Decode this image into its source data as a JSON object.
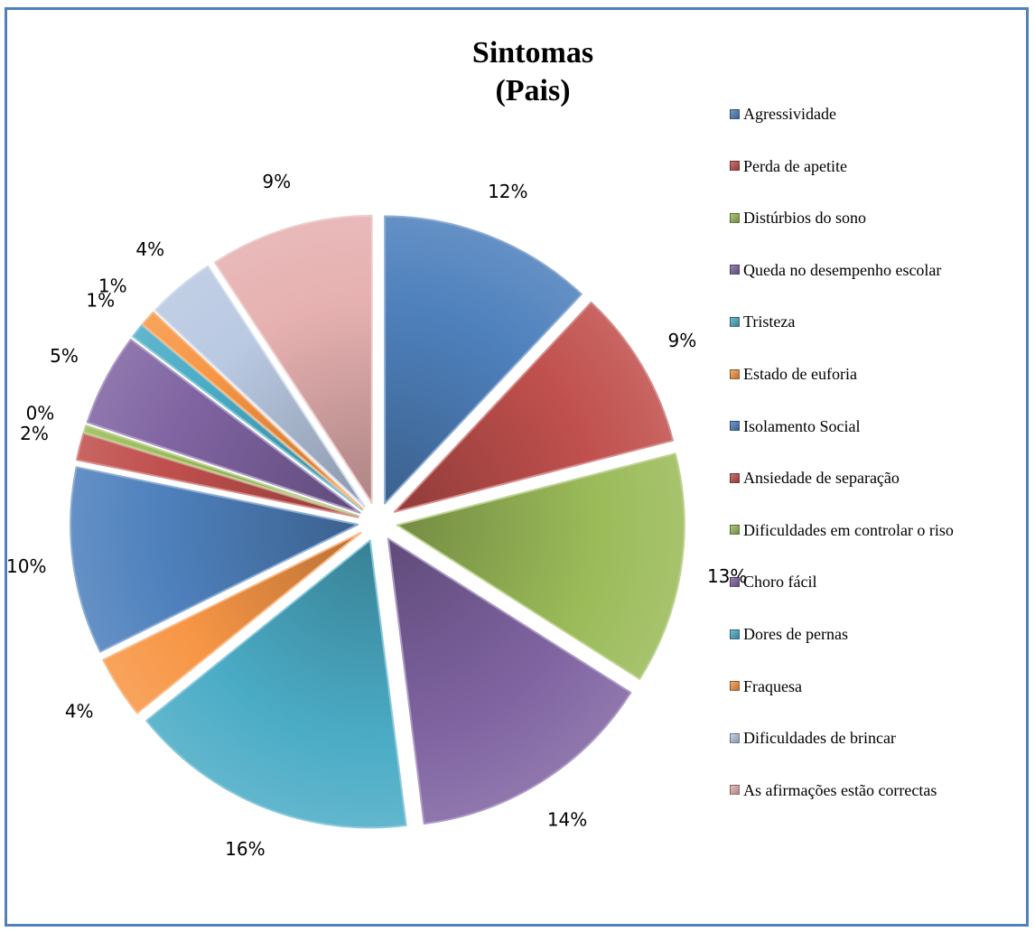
{
  "chart_data": {
    "type": "pie",
    "title": [
      "Sintomas",
      "(Pais)"
    ],
    "slices": [
      {
        "name": "Agressividade",
        "label": "12%",
        "value": 12.0,
        "color": "#4f81bd"
      },
      {
        "name": "Perda de apetite",
        "label": "9%",
        "value": 9.0,
        "color": "#c0504d"
      },
      {
        "name": "Distúrbios do sono",
        "label": "13%",
        "value": 13.0,
        "color": "#9bbb59"
      },
      {
        "name": "Queda no desempenho escolar",
        "label": "14%",
        "value": 14.0,
        "color": "#8064a2"
      },
      {
        "name": "Tristeza",
        "label": "16%",
        "value": 16.2,
        "color": "#4bacc6"
      },
      {
        "name": "Estado de euforia",
        "label": "4%",
        "value": 3.5,
        "color": "#f79646"
      },
      {
        "name": "Isolamento Social",
        "label": "10%",
        "value": 10.5,
        "color": "#4f81bd"
      },
      {
        "name": "Ansiedade de separação",
        "label": "2%",
        "value": 1.5,
        "color": "#c0504d"
      },
      {
        "name": "Dificuldades em controlar o riso",
        "label": "0%",
        "value": 0.4,
        "color": "#9bbb59"
      },
      {
        "name": "Choro fácil",
        "label": "5%",
        "value": 5.2,
        "color": "#8064a2"
      },
      {
        "name": "Dores de pernas",
        "label": "1%",
        "value": 0.8,
        "color": "#4bacc6"
      },
      {
        "name": "Fraquesa",
        "label": "1%",
        "value": 0.9,
        "color": "#f79646"
      },
      {
        "name": "Dificuldades de brincar",
        "label": "4%",
        "value": 3.8,
        "color": "#b9c9e2"
      },
      {
        "name": "As afirmações estão correctas",
        "label": "9%",
        "value": 9.2,
        "color": "#e6b0b0"
      }
    ],
    "legend_position": "right"
  }
}
